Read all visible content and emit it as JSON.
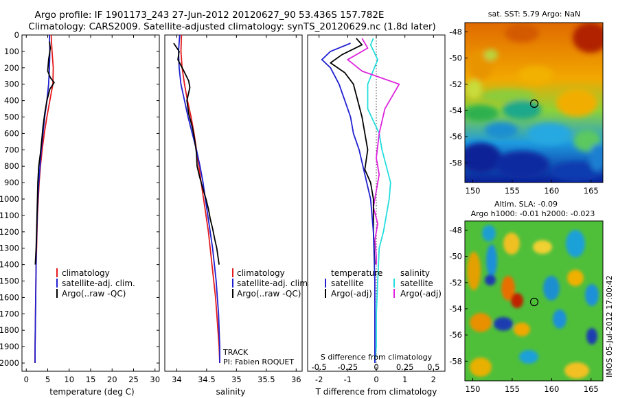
{
  "figure": {
    "title_line1": "Argo profile: IF 1901173_243 27-Jun-2012 20120627_90 53.436S 157.782E",
    "title_line2": "Climatology: CARS2009. Satellite-adjusted climatology: synTS_20120629.nc (1.8d later)",
    "side_stamp": "IMOS 05-Jul-2012 17:00:42"
  },
  "colors": {
    "climatology": "#e31a1c",
    "satellite": "#1f1fd0",
    "argo": "#000000",
    "satellite_salinity": "#22dddd",
    "argo_salinity": "#dd22dd"
  },
  "chart_data": [
    {
      "id": "temperature",
      "type": "line",
      "xlabel": "temperature (deg C)",
      "ylabel": "",
      "xlim": [
        -1,
        31
      ],
      "ylim": [
        2050,
        0
      ],
      "xticks": [
        0,
        5,
        10,
        15,
        20,
        25,
        30
      ],
      "xtick_labels": [
        "0",
        "5",
        "10",
        "15",
        "20",
        "25",
        "30"
      ],
      "yticks": [
        0,
        100,
        200,
        300,
        400,
        500,
        600,
        700,
        800,
        900,
        1000,
        1100,
        1200,
        1300,
        1400,
        1500,
        1600,
        1700,
        1800,
        1900,
        2000
      ],
      "ytick_labels": [
        "0",
        "100",
        "200",
        "300",
        "400",
        "500",
        "600",
        "700",
        "800",
        "900",
        "1000",
        "1100",
        "1200",
        "1300",
        "1400",
        "1500",
        "1600",
        "1700",
        "1800",
        "1900",
        "2000"
      ],
      "legend": [
        {
          "label": "climatology",
          "color": "#e31a1c"
        },
        {
          "label": "satellite-adj. clim.",
          "color": "#1f1fd0"
        },
        {
          "label": "Argo(..raw -QC)",
          "color": "#000000"
        }
      ],
      "series": [
        {
          "color": "#e31a1c",
          "x": [
            5.8,
            6.0,
            6.3,
            6.2,
            5.5,
            4.8,
            4.2,
            3.7,
            3.3,
            3.0,
            2.8,
            2.6,
            2.5,
            2.4,
            2.3,
            2.25,
            2.2,
            2.15,
            2.1,
            2.05,
            2.0
          ],
          "y": [
            0,
            100,
            200,
            300,
            400,
            500,
            600,
            700,
            800,
            900,
            1000,
            1100,
            1200,
            1300,
            1400,
            1500,
            1600,
            1700,
            1800,
            1900,
            2000
          ]
        },
        {
          "color": "#1f1fd0",
          "x": [
            5.4,
            5.5,
            5.4,
            5.2,
            4.8,
            4.3,
            3.9,
            3.5,
            3.2,
            2.9,
            2.7,
            2.55,
            2.45,
            2.35,
            2.3,
            2.25,
            2.2,
            2.15,
            2.1,
            2.05,
            2.05
          ],
          "y": [
            0,
            100,
            200,
            300,
            400,
            500,
            600,
            700,
            800,
            900,
            1000,
            1100,
            1200,
            1300,
            1400,
            1500,
            1600,
            1700,
            1800,
            1900,
            2000
          ]
        },
        {
          "color": "#000000",
          "x": [
            5.4,
            5.6,
            5.2,
            5.0,
            5.6,
            6.5,
            5.5,
            4.8,
            4.3,
            3.9,
            3.6,
            3.3,
            2.9,
            2.7,
            2.6,
            2.5,
            2.4,
            2.3,
            2.2,
            2.1
          ],
          "y": [
            40,
            80,
            150,
            220,
            260,
            290,
            330,
            400,
            480,
            560,
            640,
            720,
            800,
            900,
            1000,
            1100,
            1200,
            1300,
            1350,
            1400
          ]
        }
      ]
    },
    {
      "id": "salinity",
      "type": "line",
      "xlabel": "salinity",
      "ylabel": "",
      "xlim": [
        33.8,
        36.1
      ],
      "ylim": [
        2050,
        0
      ],
      "xticks": [
        34,
        34.5,
        35,
        35.5,
        36
      ],
      "xtick_labels": [
        "34",
        "34.5",
        "35",
        "35.5",
        "36"
      ],
      "legend": [
        {
          "label": "climatology",
          "color": "#e31a1c"
        },
        {
          "label": "satellite-adj. clim.",
          "color": "#1f1fd0"
        },
        {
          "label": "Argo(..raw -QC)",
          "color": "#000000"
        }
      ],
      "annotations": [
        "TRACK",
        "PI: Fabien ROQUET"
      ],
      "series": [
        {
          "color": "#e31a1c",
          "x": [
            34.08,
            34.07,
            34.09,
            34.13,
            34.18,
            34.24,
            34.29,
            34.33,
            34.37,
            34.41,
            34.45,
            34.49,
            34.53,
            34.56,
            34.59,
            34.62,
            34.65,
            34.67,
            34.69,
            34.71,
            34.72
          ],
          "y": [
            0,
            100,
            200,
            300,
            400,
            500,
            600,
            700,
            800,
            900,
            1000,
            1100,
            1200,
            1300,
            1400,
            1500,
            1600,
            1700,
            1800,
            1900,
            2000
          ]
        },
        {
          "color": "#1f1fd0",
          "x": [
            34.05,
            34.03,
            34.04,
            34.07,
            34.13,
            34.19,
            34.26,
            34.33,
            34.39,
            34.44,
            34.48,
            34.52,
            34.56,
            34.6,
            34.63,
            34.66,
            34.68,
            34.7,
            34.71,
            34.72,
            34.72
          ],
          "y": [
            0,
            100,
            200,
            300,
            400,
            500,
            600,
            700,
            800,
            900,
            1000,
            1100,
            1200,
            1300,
            1400,
            1500,
            1600,
            1700,
            1800,
            1900,
            2000
          ]
        },
        {
          "color": "#000000",
          "x": [
            33.95,
            34.04,
            34.02,
            34.12,
            34.2,
            34.22,
            34.17,
            34.2,
            34.26,
            34.3,
            34.33,
            34.34,
            34.38,
            34.44,
            34.49,
            34.53,
            34.56,
            34.6,
            34.64,
            34.67,
            34.69,
            34.71
          ],
          "y": [
            50,
            100,
            150,
            220,
            280,
            320,
            400,
            480,
            560,
            640,
            720,
            800,
            860,
            940,
            1000,
            1060,
            1120,
            1180,
            1250,
            1300,
            1350,
            1400
          ]
        }
      ]
    },
    {
      "id": "differences",
      "type": "line",
      "xlabel": "T difference from climatology",
      "xlabel_top": "S difference from climatology",
      "ylabel": "",
      "xlim": [
        -2.4,
        2.4
      ],
      "ylim": [
        2050,
        0
      ],
      "xticks": [
        -2,
        -1,
        0,
        1,
        2
      ],
      "xtick_labels": [
        "-2",
        "-1",
        "0",
        "1",
        "2"
      ],
      "s_ticks": [
        -0.5,
        -0.25,
        0,
        0.25,
        0.5
      ],
      "s_tick_labels": [
        "-0.5",
        "-0.25",
        "0",
        "0.25",
        "0.5"
      ],
      "legend": [
        {
          "label": "temperature",
          "color": ""
        },
        {
          "label": "satellite",
          "color": "#1f1fd0"
        },
        {
          "label": "Argo(-adj)",
          "color": "#000000"
        },
        {
          "label": "salinity",
          "color": ""
        },
        {
          "label": "satellite",
          "color": "#22dddd"
        },
        {
          "label": "Argo(-adj)",
          "color": "#dd22dd"
        }
      ],
      "series": [
        {
          "color": "#22dddd",
          "x": [
            -0.1,
            -0.2,
            0.05,
            -0.3,
            -0.3,
            0.1,
            0.2,
            0.35,
            0.5,
            0.45,
            0.35,
            0.25,
            0.1,
            0.05,
            0.0,
            0.0,
            -0.05
          ],
          "y": [
            20,
            60,
            150,
            300,
            450,
            600,
            700,
            800,
            900,
            1000,
            1100,
            1200,
            1300,
            1500,
            1700,
            1900,
            2000
          ]
        },
        {
          "color": "#dd22dd",
          "x": [
            -0.5,
            -0.3,
            -1.0,
            -0.5,
            0.8,
            0.3,
            0.1,
            0.0,
            0.1,
            0.0,
            -0.1,
            0.05,
            -0.05,
            0.0,
            0.0
          ],
          "y": [
            20,
            80,
            150,
            220,
            300,
            450,
            600,
            750,
            850,
            950,
            1050,
            1150,
            1250,
            1350,
            1400
          ]
        },
        {
          "color": "#000000",
          "x": [
            -0.7,
            -0.5,
            -1.2,
            -1.6,
            -1.1,
            -0.8,
            -0.5,
            -0.3,
            -0.4,
            -0.2,
            -0.1,
            -0.1,
            -0.05
          ],
          "y": [
            20,
            60,
            120,
            170,
            230,
            300,
            500,
            700,
            820,
            900,
            1000,
            1200,
            1400
          ]
        },
        {
          "color": "#1f1fd0",
          "x": [
            -0.9,
            -1.6,
            -1.9,
            -1.6,
            -1.3,
            -1.1,
            -0.9,
            -0.8,
            -0.6,
            -0.4,
            -0.2,
            -0.1,
            -0.05,
            -0.05
          ],
          "y": [
            50,
            100,
            150,
            200,
            300,
            400,
            500,
            600,
            700,
            850,
            1000,
            1200,
            1500,
            2000
          ]
        }
      ]
    },
    {
      "id": "sst_map",
      "type": "heatmap",
      "title": "sat. SST: 5.79 Argo: NaN",
      "xticks": [
        150,
        155,
        160,
        165
      ],
      "xtick_labels": [
        "150",
        "155",
        "160",
        "165"
      ],
      "yticks": [
        -48,
        -50,
        -52,
        -54,
        -56,
        -58
      ],
      "ytick_labels": [
        "-48",
        "-50",
        "-52",
        "-54",
        "-56",
        "-58"
      ],
      "xlim": [
        149,
        166.5
      ],
      "ylim": [
        -59.5,
        -47.3
      ],
      "marker": {
        "lon": 157.8,
        "lat": -53.4
      }
    },
    {
      "id": "sla_map",
      "type": "heatmap",
      "title": "Altim. SLA: -0.09",
      "subtitle": "Argo h1000: -0.01 h2000: -0.023",
      "xticks": [
        150,
        155,
        160,
        165
      ],
      "xtick_labels": [
        "150",
        "155",
        "160",
        "165"
      ],
      "yticks": [
        -48,
        -50,
        -52,
        -54,
        -56,
        -58
      ],
      "ytick_labels": [
        "-48",
        "-50",
        "-52",
        "-54",
        "-56",
        "-58"
      ],
      "xlim": [
        149,
        166.5
      ],
      "ylim": [
        -59.5,
        -47.3
      ],
      "marker": {
        "lon": 157.8,
        "lat": -53.4
      }
    }
  ]
}
